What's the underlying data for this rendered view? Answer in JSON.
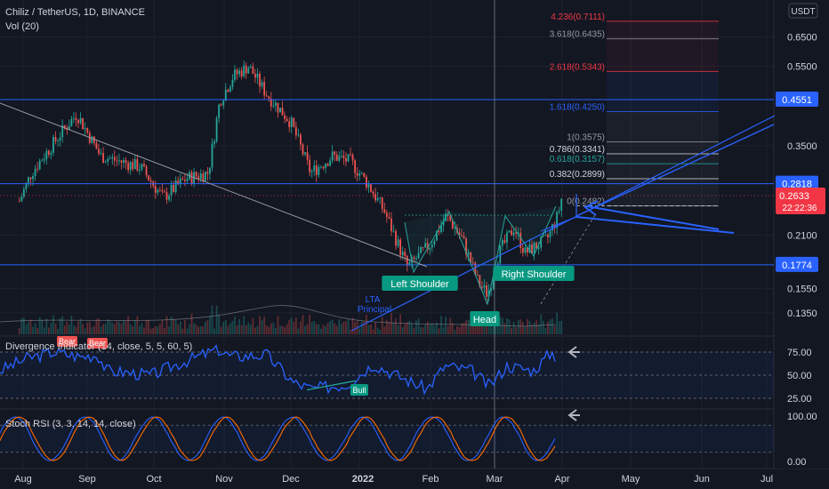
{
  "header": {
    "symbol_line": "Chiliz / TetherUS, 1D, BINANCE",
    "volume_label": "Vol (20)"
  },
  "currency_badge": "USDT",
  "price_axis": {
    "ticks": [
      {
        "label": "0.6500",
        "value": 0.65
      },
      {
        "label": "0.5500",
        "value": 0.55
      },
      {
        "label": "0.3500",
        "value": 0.35
      },
      {
        "label": "0.2100",
        "value": 0.21
      },
      {
        "label": "0.1550",
        "value": 0.155
      },
      {
        "label": "0.1350",
        "value": 0.135
      }
    ],
    "markers": [
      {
        "label": "0.4551",
        "value": 0.4551,
        "color": "#2962ff"
      },
      {
        "label": "0.2818",
        "value": 0.2818,
        "color": "#2962ff"
      },
      {
        "label": "0.1774",
        "value": 0.1774,
        "color": "#2962ff"
      }
    ],
    "last_price": {
      "label": "0.2633",
      "countdown": "22:22:36",
      "value": 0.2633,
      "color": "#f23645"
    }
  },
  "fib_levels": [
    {
      "label": "4.236(0.7111)",
      "value": 0.7111,
      "color": "#f23645"
    },
    {
      "label": "3.618(0.6435)",
      "value": 0.6435,
      "color": "#9598a1"
    },
    {
      "label": "2.618(0.5343)",
      "value": 0.5343,
      "color": "#f23645"
    },
    {
      "label": "1.618(0.4250)",
      "value": 0.425,
      "color": "#2962ff"
    },
    {
      "label": "1(0.3575)",
      "value": 0.3575,
      "color": "#9598a1"
    },
    {
      "label": "0.786(0.3341)",
      "value": 0.3341,
      "color": "#d1d4dc"
    },
    {
      "label": "0.618(0.3157)",
      "value": 0.3157,
      "color": "#26a69a"
    },
    {
      "label": "0.382(0.2899)",
      "value": 0.2899,
      "color": "#d1d4dc"
    },
    {
      "label": "0(0.2482)",
      "value": 0.2482,
      "color": "#9598a1"
    }
  ],
  "annotations": {
    "left_shoulder": "Left Shoulder",
    "right_shoulder": "Right Shoulder",
    "head": "Head",
    "lta_line1": "LTA",
    "lta_line2": "Principal"
  },
  "indicator1": {
    "title": "Divergence Indicator (14, close, 5, 5, 60, 5)",
    "ticks": [
      {
        "label": "75.00",
        "value": 75
      },
      {
        "label": "50.00",
        "value": 50
      },
      {
        "label": "25.00",
        "value": 25
      }
    ],
    "bear_label": "Bear",
    "bull_label": "Bull"
  },
  "indicator2": {
    "title": "Stoch RSI (3, 3, 14, 14, close)",
    "ticks": [
      {
        "label": "100.00",
        "value": 100
      },
      {
        "label": "0.00",
        "value": 0
      }
    ]
  },
  "time_axis": [
    "Aug",
    "Sep",
    "Oct",
    "Nov",
    "Dec",
    "2022",
    "Feb",
    "Mar",
    "Apr",
    "May",
    "Jun",
    "Jul"
  ],
  "chart_data": {
    "type": "candlestick",
    "title": "Chiliz / TetherUS, 1D, BINANCE",
    "y_scale": "log",
    "ylim": [
      0.12,
      0.78
    ],
    "key_prices": {
      "resistance_1": 0.4551,
      "resistance_2": 0.2818,
      "support": 0.1774,
      "last": 0.2633
    },
    "close_path": [
      {
        "date": "Jul 20",
        "close": 0.255
      },
      {
        "date": "Aug 5",
        "close": 0.3
      },
      {
        "date": "Aug 20",
        "close": 0.38
      },
      {
        "date": "Aug 27",
        "close": 0.42
      },
      {
        "date": "Sep 7",
        "close": 0.33
      },
      {
        "date": "Sep 25",
        "close": 0.31
      },
      {
        "date": "Oct 5",
        "close": 0.26
      },
      {
        "date": "Oct 15",
        "close": 0.29
      },
      {
        "date": "Oct 25",
        "close": 0.3
      },
      {
        "date": "Oct 30",
        "close": 0.45
      },
      {
        "date": "Nov 5",
        "close": 0.52
      },
      {
        "date": "Nov 12",
        "close": 0.55
      },
      {
        "date": "Nov 20",
        "close": 0.47
      },
      {
        "date": "Dec 1",
        "close": 0.4
      },
      {
        "date": "Dec 10",
        "close": 0.3
      },
      {
        "date": "Dec 20",
        "close": 0.33
      },
      {
        "date": "Dec 28",
        "close": 0.32
      },
      {
        "date": "Jan 5",
        "close": 0.28
      },
      {
        "date": "Jan 12",
        "close": 0.24
      },
      {
        "date": "Jan 22",
        "close": 0.175
      },
      {
        "date": "Feb 1",
        "close": 0.2
      },
      {
        "date": "Feb 8",
        "close": 0.235
      },
      {
        "date": "Feb 15",
        "close": 0.205
      },
      {
        "date": "Feb 22",
        "close": 0.16
      },
      {
        "date": "Feb 26",
        "close": 0.15
      },
      {
        "date": "Mar 3",
        "close": 0.19
      },
      {
        "date": "Mar 10",
        "close": 0.22
      },
      {
        "date": "Mar 15",
        "close": 0.19
      },
      {
        "date": "Mar 25",
        "close": 0.205
      },
      {
        "date": "Mar 30",
        "close": 0.235
      },
      {
        "date": "Apr 1",
        "close": 0.2633
      }
    ]
  }
}
